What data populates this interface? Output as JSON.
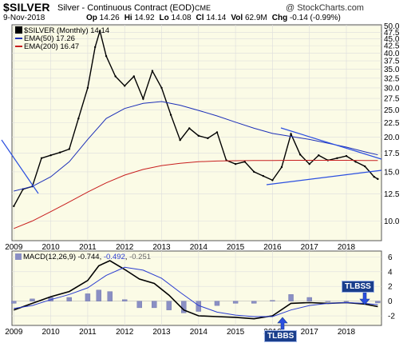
{
  "header": {
    "ticker": "$SILVER",
    "subtitle": "Silver - Continuous Contract (EOD)",
    "exchange": "CME",
    "credit": "@ StockCharts.com",
    "date": "9-Nov-2018",
    "stats": [
      {
        "label": "Op",
        "value": "14.26"
      },
      {
        "label": "Hi",
        "value": "14.92"
      },
      {
        "label": "Lo",
        "value": "14.08"
      },
      {
        "label": "Cl",
        "value": "14.14"
      },
      {
        "label": "Vol",
        "value": "62.9M"
      },
      {
        "label": "Chg",
        "value": "-0.14 (-0.99%)"
      }
    ]
  },
  "legend": {
    "price": "$SILVER (Monthly) 14.14",
    "ema50": "EMA(50) 17.26",
    "ema200": "EMA(200) 16.47",
    "macd_label": "MACD(12,26,9)",
    "macd_value": "-0.744",
    "signal_value": "-0.492",
    "hist_value": "-0.251"
  },
  "annotations": {
    "tlbss_top": "TLBSS",
    "tlbss_bottom": "TLBBS"
  },
  "colors": {
    "price": "#000000",
    "ema50": "#1c2fb8",
    "ema200": "#c81e1e",
    "macd": "#000000",
    "signal": "#2a3cd0",
    "histogram": "#8a8fc4",
    "trendline": "#2b4fe0",
    "panel_bg": "#fbfbe6",
    "callout": "#1a3e8c"
  },
  "chart_data": [
    {
      "type": "line",
      "title": "$SILVER",
      "subtitle": "Silver - Continuous Contract (EOD)",
      "x_ticks": [
        "2009",
        "2010",
        "2011",
        "2012",
        "2013",
        "2014",
        "2015",
        "2016",
        "2017",
        "2018"
      ],
      "y_ticks": [
        10.0,
        12.5,
        15.0,
        17.5,
        20.0,
        22.5,
        25.0,
        27.5,
        30.0,
        32.5,
        35.0,
        37.5,
        40.0,
        42.5,
        45.0,
        47.5,
        50.0
      ],
      "y_scale": "log",
      "ylim": [
        8.5,
        50.5
      ],
      "xlim": [
        2008.95,
        2018.95
      ],
      "grid": true,
      "series": [
        {
          "name": "$SILVER (Monthly)",
          "x": [
            2009.0,
            2009.25,
            2009.5,
            2009.75,
            2010.0,
            2010.25,
            2010.5,
            2010.75,
            2011.0,
            2011.2,
            2011.33,
            2011.5,
            2011.75,
            2012.0,
            2012.25,
            2012.5,
            2012.75,
            2013.0,
            2013.25,
            2013.5,
            2013.75,
            2014.0,
            2014.25,
            2014.5,
            2014.75,
            2015.0,
            2015.25,
            2015.5,
            2015.75,
            2016.0,
            2016.25,
            2016.5,
            2016.75,
            2017.0,
            2017.25,
            2017.5,
            2017.75,
            2018.0,
            2018.25,
            2018.5,
            2018.75,
            2018.85
          ],
          "y": [
            11.3,
            13.0,
            13.3,
            16.8,
            17.2,
            17.6,
            18.1,
            23.3,
            30.0,
            42.0,
            48.0,
            39.0,
            33.0,
            30.5,
            33.0,
            27.4,
            34.5,
            30.0,
            24.0,
            19.5,
            21.5,
            20.2,
            19.8,
            20.8,
            16.5,
            16.0,
            16.3,
            15.0,
            14.5,
            14.0,
            15.6,
            20.5,
            17.3,
            16.0,
            17.2,
            16.5,
            16.8,
            17.1,
            16.3,
            15.7,
            14.4,
            14.14
          ]
        },
        {
          "name": "EMA(50)",
          "x": [
            2009.0,
            2009.5,
            2010.0,
            2010.5,
            2011.0,
            2011.5,
            2012.0,
            2012.5,
            2013.0,
            2013.5,
            2014.0,
            2014.5,
            2015.0,
            2015.5,
            2016.0,
            2016.5,
            2017.0,
            2017.5,
            2018.0,
            2018.5,
            2018.85
          ],
          "y": [
            12.8,
            13.3,
            14.4,
            16.3,
            19.6,
            23.3,
            25.3,
            26.4,
            26.8,
            26.0,
            24.9,
            23.8,
            22.6,
            21.5,
            20.6,
            20.1,
            19.6,
            19.0,
            18.4,
            17.7,
            17.26
          ]
        },
        {
          "name": "EMA(200)",
          "x": [
            2009.0,
            2009.5,
            2010.0,
            2010.5,
            2011.0,
            2011.5,
            2012.0,
            2012.5,
            2013.0,
            2013.5,
            2014.0,
            2014.5,
            2015.0,
            2015.5,
            2016.0,
            2016.5,
            2017.0,
            2017.5,
            2018.0,
            2018.5,
            2018.85
          ],
          "y": [
            9.4,
            10.0,
            10.8,
            11.7,
            12.7,
            13.7,
            14.6,
            15.3,
            15.8,
            16.1,
            16.3,
            16.4,
            16.45,
            16.47,
            16.48,
            16.5,
            16.5,
            16.5,
            16.5,
            16.48,
            16.47
          ]
        }
      ]
    },
    {
      "type": "line",
      "title": "MACD(12,26,9)",
      "x_ticks": [
        "2009",
        "2010",
        "2011",
        "2012",
        "2013",
        "2014",
        "2015",
        "2016",
        "2017",
        "2018"
      ],
      "y_ticks": [
        -2,
        0,
        2,
        4,
        6
      ],
      "ylim": [
        -3.3,
        6.8
      ],
      "xlim": [
        2008.95,
        2018.95
      ],
      "grid": true,
      "series": [
        {
          "name": "MACD",
          "x": [
            2009.0,
            2009.5,
            2010.0,
            2010.5,
            2011.0,
            2011.3,
            2011.6,
            2012.0,
            2012.4,
            2012.8,
            2013.2,
            2013.6,
            2014.0,
            2014.5,
            2015.0,
            2015.5,
            2016.0,
            2016.5,
            2017.0,
            2017.5,
            2018.0,
            2018.5,
            2018.85
          ],
          "y": [
            -1.2,
            -0.3,
            0.6,
            1.3,
            2.8,
            4.8,
            5.5,
            4.3,
            3.0,
            2.4,
            0.8,
            -1.2,
            -2.0,
            -2.1,
            -2.2,
            -2.4,
            -2.0,
            -0.3,
            -0.2,
            -0.3,
            -0.2,
            -0.4,
            -0.744
          ]
        },
        {
          "name": "Signal",
          "x": [
            2009.0,
            2009.5,
            2010.0,
            2010.5,
            2011.0,
            2011.5,
            2012.0,
            2012.5,
            2013.0,
            2013.5,
            2014.0,
            2014.5,
            2015.0,
            2015.5,
            2016.0,
            2016.5,
            2017.0,
            2017.5,
            2018.0,
            2018.5,
            2018.85
          ],
          "y": [
            -1.0,
            -0.6,
            0.2,
            0.9,
            1.8,
            3.5,
            4.6,
            4.2,
            3.1,
            1.2,
            -0.6,
            -1.5,
            -1.9,
            -2.1,
            -2.1,
            -1.2,
            -0.6,
            -0.3,
            -0.2,
            -0.3,
            -0.492
          ]
        },
        {
          "name": "Histogram",
          "x": [
            2009.0,
            2009.5,
            2010.0,
            2010.5,
            2011.0,
            2011.3,
            2011.6,
            2012.0,
            2012.4,
            2012.8,
            2013.2,
            2013.6,
            2014.0,
            2014.5,
            2015.0,
            2015.5,
            2016.0,
            2016.5,
            2017.0,
            2017.5,
            2018.0,
            2018.5,
            2018.85
          ],
          "y": [
            -0.3,
            0.3,
            0.5,
            0.5,
            1.0,
            1.5,
            1.3,
            0.2,
            -0.9,
            -0.9,
            -1.2,
            -1.6,
            -1.4,
            -0.6,
            -0.3,
            -0.3,
            0.1,
            0.9,
            0.5,
            0.0,
            0.0,
            -0.1,
            -0.251
          ]
        }
      ]
    }
  ]
}
